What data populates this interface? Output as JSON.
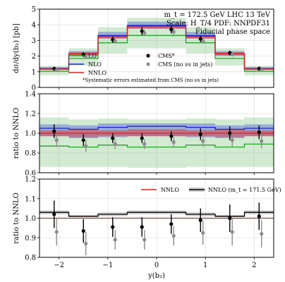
{
  "chart_data": [
    {
      "type": "line",
      "panel": "top",
      "ylabel": "dσ/dy(b₂) [pb]",
      "ylim": [
        0,
        5
      ],
      "yticks": [
        0,
        1,
        2,
        3,
        4,
        5
      ],
      "xlim": [
        -2.4,
        2.4
      ],
      "annotations": {
        "line1": "m_t = 172.5 GeV LHC 13 TeV",
        "line2": "Scale: H_T/4 PDF: NNPDF31",
        "line3": "Fiducial phase space",
        "note": "*Systematic errors estimated from CMS (no νs in jets)"
      },
      "bins": [
        -2.4,
        -1.8,
        -1.2,
        -0.6,
        0.0,
        0.6,
        1.2,
        1.8,
        2.4
      ],
      "series": [
        {
          "name": "LO",
          "color": "#2ca02c",
          "step": [
            1.03,
            1.85,
            2.85,
            3.32,
            3.32,
            2.85,
            1.85,
            1.03
          ],
          "band_lo": [
            0.78,
            1.4,
            2.15,
            2.5,
            2.5,
            2.15,
            1.4,
            0.78
          ],
          "band_hi": [
            1.38,
            2.5,
            3.85,
            4.45,
            4.45,
            3.85,
            2.5,
            1.38
          ]
        },
        {
          "name": "NLO",
          "color": "#1f1fd0",
          "step": [
            1.2,
            2.15,
            3.3,
            3.95,
            3.95,
            3.3,
            2.15,
            1.2
          ],
          "band_lo": [
            1.12,
            2.02,
            3.12,
            3.75,
            3.75,
            3.12,
            2.02,
            1.12
          ],
          "band_hi": [
            1.3,
            2.32,
            3.55,
            4.2,
            4.2,
            3.55,
            2.32,
            1.3
          ]
        },
        {
          "name": "NNLO",
          "color": "#e02020",
          "step": [
            1.18,
            2.15,
            3.25,
            3.88,
            3.88,
            3.25,
            2.15,
            1.18
          ],
          "band_lo": [
            1.12,
            2.05,
            3.12,
            3.75,
            3.75,
            3.12,
            2.05,
            1.12
          ],
          "band_hi": [
            1.25,
            2.25,
            3.38,
            4.0,
            4.0,
            3.38,
            2.25,
            1.25
          ]
        }
      ],
      "points": [
        {
          "name": "CMS*",
          "color": "#000000",
          "x": [
            -2.1,
            -1.5,
            -0.9,
            -0.3,
            0.3,
            0.9,
            1.5,
            2.1
          ],
          "y": [
            1.2,
            2.1,
            3.05,
            3.6,
            3.7,
            3.1,
            2.2,
            1.2
          ],
          "err": [
            0.12,
            0.15,
            0.2,
            0.25,
            0.25,
            0.2,
            0.15,
            0.12
          ]
        },
        {
          "name": "CMS (no νs in jets)",
          "color": "#8c8c8c",
          "x": [
            -2.05,
            -1.45,
            -0.85,
            -0.25,
            0.35,
            0.95,
            1.55,
            2.15
          ],
          "y": [
            1.1,
            1.95,
            2.95,
            3.48,
            3.55,
            2.95,
            2.1,
            1.1
          ],
          "err": [
            0.1,
            0.12,
            0.15,
            0.2,
            0.2,
            0.15,
            0.12,
            0.1
          ]
        }
      ]
    },
    {
      "type": "line",
      "panel": "middle",
      "ylabel": "ratio to NNLO",
      "ylim": [
        0.6,
        1.4
      ],
      "yticks": [
        0.6,
        0.8,
        1.0,
        1.2,
        1.4
      ],
      "xlim": [
        -2.4,
        2.4
      ],
      "bins": [
        -2.4,
        -1.8,
        -1.2,
        -0.6,
        0.0,
        0.6,
        1.2,
        1.8,
        2.4
      ],
      "series": [
        {
          "name": "LO",
          "color": "#2ca02c",
          "step": [
            0.87,
            0.86,
            0.88,
            0.86,
            0.86,
            0.88,
            0.86,
            0.89
          ],
          "band_lo": [
            0.66,
            0.66,
            0.66,
            0.65,
            0.65,
            0.66,
            0.66,
            0.66
          ],
          "band_hi": [
            1.16,
            1.14,
            1.15,
            1.14,
            1.14,
            1.15,
            1.14,
            1.16
          ]
        },
        {
          "name": "NLO",
          "color": "#1f1fd0",
          "step": [
            1.05,
            1.04,
            1.06,
            1.07,
            1.07,
            1.06,
            1.04,
            1.05
          ],
          "band_lo": [
            0.97,
            0.95,
            0.96,
            0.97,
            0.97,
            0.96,
            0.95,
            0.97
          ],
          "band_hi": [
            1.09,
            1.08,
            1.1,
            1.1,
            1.1,
            1.1,
            1.08,
            1.09
          ]
        },
        {
          "name": "NNLO",
          "color": "#e02020",
          "step": [
            1.0,
            1.0,
            1.0,
            1.0,
            1.0,
            1.0,
            1.0,
            1.0
          ],
          "band_lo": [
            0.97,
            0.96,
            0.97,
            0.97,
            0.97,
            0.97,
            0.96,
            0.97
          ],
          "band_hi": [
            1.03,
            1.04,
            1.03,
            1.04,
            1.04,
            1.03,
            1.04,
            1.03
          ]
        }
      ],
      "points": [
        {
          "name": "CMS*",
          "color": "#000000",
          "x": [
            -2.1,
            -1.5,
            -0.9,
            -0.3,
            0.3,
            0.9,
            1.5,
            2.1
          ],
          "y": [
            1.02,
            0.93,
            0.95,
            0.95,
            0.97,
            0.99,
            1.0,
            1.01
          ],
          "err": [
            0.07,
            0.06,
            0.05,
            0.05,
            0.05,
            0.06,
            0.07,
            0.07
          ]
        },
        {
          "name": "CMS (no νs in jets)",
          "color": "#8c8c8c",
          "x": [
            -2.05,
            -1.45,
            -0.85,
            -0.25,
            0.35,
            0.95,
            1.55,
            2.15
          ],
          "y": [
            0.93,
            0.87,
            0.89,
            0.89,
            0.91,
            0.92,
            0.93,
            0.92
          ],
          "err": [
            0.07,
            0.06,
            0.05,
            0.05,
            0.05,
            0.06,
            0.07,
            0.07
          ]
        }
      ]
    },
    {
      "type": "line",
      "panel": "bottom",
      "xlabel": "y(b₂)",
      "ylabel": "ratio to NNLO",
      "ylim": [
        0.8,
        1.2
      ],
      "yticks": [
        0.8,
        0.9,
        1.0,
        1.1,
        1.2
      ],
      "xlim": [
        -2.4,
        2.4
      ],
      "xticks": [
        -2,
        -1,
        0,
        1,
        2
      ],
      "bins": [
        -2.4,
        -1.8,
        -1.2,
        -0.6,
        0.0,
        0.6,
        1.2,
        1.8,
        2.4
      ],
      "series": [
        {
          "name": "NNLO",
          "color": "#e02020",
          "step": [
            1.0,
            1.0,
            1.0,
            1.0,
            1.0,
            1.0,
            1.0,
            1.0
          ]
        },
        {
          "name": "NNLO (m_t = 171.5 GeV)",
          "color": "#000000",
          "step": [
            1.03,
            1.01,
            1.02,
            1.03,
            1.03,
            1.02,
            1.01,
            1.03
          ],
          "band_lo": [
            1.02,
            1.005,
            1.01,
            1.02,
            1.02,
            1.01,
            1.005,
            1.02
          ],
          "band_hi": [
            1.04,
            1.015,
            1.03,
            1.04,
            1.04,
            1.03,
            1.015,
            1.04
          ]
        }
      ],
      "points": [
        {
          "name": "CMS*",
          "color": "#000000",
          "x": [
            -2.1,
            -1.5,
            -0.9,
            -0.3,
            0.3,
            0.9,
            1.5,
            2.1
          ],
          "y": [
            1.02,
            0.935,
            0.955,
            0.955,
            0.97,
            0.99,
            1.0,
            1.01
          ],
          "err": [
            0.07,
            0.06,
            0.05,
            0.05,
            0.05,
            0.06,
            0.07,
            0.07
          ]
        },
        {
          "name": "CMS (no νs in jets)",
          "color": "#8c8c8c",
          "x": [
            -2.05,
            -1.45,
            -0.85,
            -0.25,
            0.35,
            0.95,
            1.55,
            2.15
          ],
          "y": [
            0.93,
            0.87,
            0.89,
            0.89,
            0.91,
            0.925,
            0.93,
            0.92
          ],
          "err": [
            0.07,
            0.06,
            0.05,
            0.05,
            0.05,
            0.06,
            0.07,
            0.07
          ]
        }
      ]
    }
  ]
}
